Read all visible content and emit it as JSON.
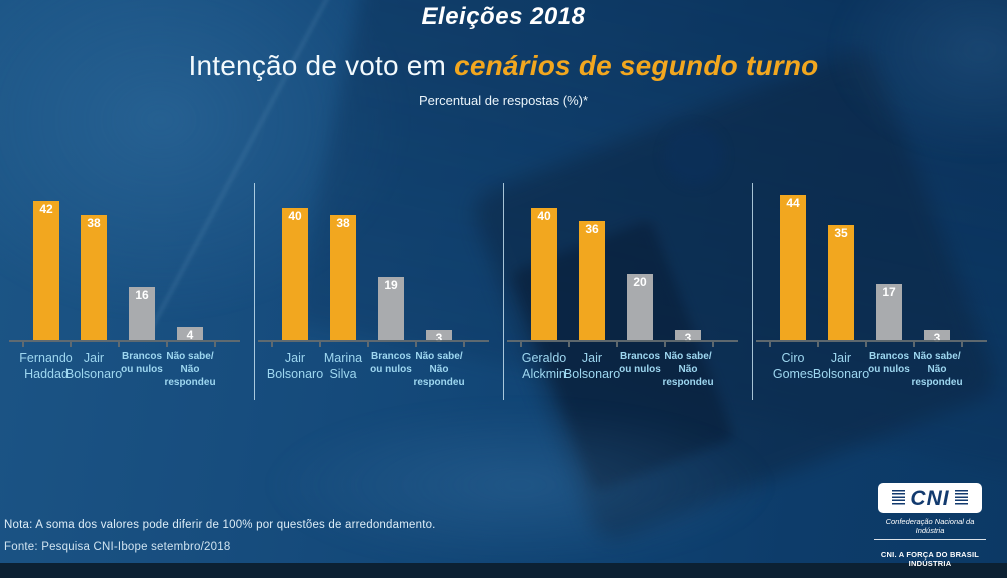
{
  "header": {
    "title": "Eleições 2018",
    "heading_plain": "Intenção de voto em ",
    "heading_highlight": "cenários de segundo turno",
    "subtitle": "Percentual de respostas (%)*"
  },
  "chart_data": {
    "type": "bar",
    "unit": "%",
    "ylim": [
      0,
      50
    ],
    "grid": false,
    "legend": "none",
    "colors": {
      "candidate": "#F2A71F",
      "neutral": "#A9ABAE",
      "value_label": "#ffffff",
      "category_label": "#9ed7f0"
    },
    "groups": [
      {
        "bars": [
          {
            "label": "Fernando\nHaddad",
            "value": 42,
            "kind": "candidate"
          },
          {
            "label": "Jair\nBolsonaro",
            "value": 38,
            "kind": "candidate"
          },
          {
            "label": "Brancos\nou nulos",
            "value": 16,
            "kind": "neutral"
          },
          {
            "label": "Não sabe/\nNão\nrespondeu",
            "value": 4,
            "kind": "neutral"
          }
        ]
      },
      {
        "bars": [
          {
            "label": "Jair\nBolsonaro",
            "value": 40,
            "kind": "candidate"
          },
          {
            "label": "Marina\nSilva",
            "value": 38,
            "kind": "candidate"
          },
          {
            "label": "Brancos\nou nulos",
            "value": 19,
            "kind": "neutral"
          },
          {
            "label": "Não sabe/\nNão\nrespondeu",
            "value": 3,
            "kind": "neutral"
          }
        ]
      },
      {
        "bars": [
          {
            "label": "Geraldo\nAlckmin",
            "value": 40,
            "kind": "candidate"
          },
          {
            "label": "Jair\nBolsonaro",
            "value": 36,
            "kind": "candidate"
          },
          {
            "label": "Brancos\nou nulos",
            "value": 20,
            "kind": "neutral"
          },
          {
            "label": "Não sabe/\nNão\nrespondeu",
            "value": 3,
            "kind": "neutral"
          }
        ]
      },
      {
        "bars": [
          {
            "label": "Ciro\nGomes",
            "value": 44,
            "kind": "candidate"
          },
          {
            "label": "Jair\nBolsonaro",
            "value": 35,
            "kind": "candidate"
          },
          {
            "label": "Brancos\nou nulos",
            "value": 17,
            "kind": "neutral"
          },
          {
            "label": "Não sabe/\nNão\nrespondeu",
            "value": 3,
            "kind": "neutral"
          }
        ]
      }
    ]
  },
  "footer": {
    "note": "Nota: A soma dos valores pode diferir de 100% por questões de arredondamento.",
    "source": "Fonte: Pesquisa CNI-Ibope setembro/2018"
  },
  "logo": {
    "acronym": "CNI",
    "name": "Confederação Nacional da Indústria",
    "tagline": "CNI. A FORÇA DO BRASIL INDÚSTRIA"
  }
}
